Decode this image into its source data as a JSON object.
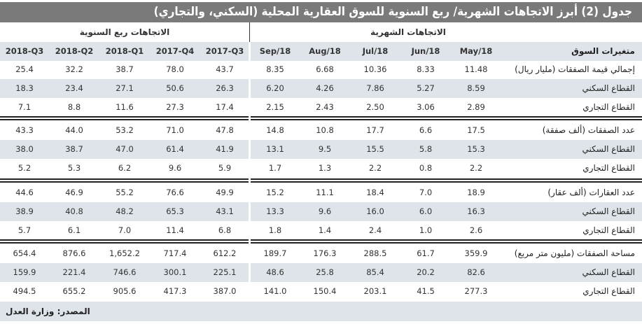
{
  "title": "جدول (2) أبرز الاتجاهات الشهرية/ ربع السنوية للسوق العقارية المحلية (السكني، والتجاري)",
  "groups": {
    "monthly": "الاتجاهات الشهرية",
    "quarterly": "الاتجاهات ربع السنوية"
  },
  "columns": {
    "label_header": "متغيرات السوق",
    "monthly": [
      "May/18",
      "Jun/18",
      "Jul/18",
      "Aug/18",
      "Sep/18"
    ],
    "quarterly": [
      "2017-Q3",
      "2017-Q4",
      "2018-Q1",
      "2018-Q2",
      "2018-Q3"
    ]
  },
  "rows": [
    {
      "label": "إجمالي قيمة الصفقات (مليار ريال)",
      "monthly": [
        "11.48",
        "8.33",
        "10.36",
        "6.68",
        "8.35"
      ],
      "quarterly": [
        "43.7",
        "78.0",
        "38.7",
        "32.2",
        "25.4"
      ]
    },
    {
      "label": "القطاع السكني",
      "monthly": [
        "8.59",
        "5.27",
        "7.86",
        "4.26",
        "6.20"
      ],
      "quarterly": [
        "26.3",
        "50.6",
        "27.1",
        "23.4",
        "18.3"
      ]
    },
    {
      "label": "القطاع التجاري",
      "monthly": [
        "2.89",
        "3.06",
        "2.50",
        "2.43",
        "2.15"
      ],
      "quarterly": [
        "17.4",
        "27.3",
        "11.6",
        "8.8",
        "7.1"
      ]
    },
    {
      "label": "عدد الصفقات (ألف صفقة)",
      "monthly": [
        "17.5",
        "6.6",
        "17.7",
        "10.8",
        "14.8"
      ],
      "quarterly": [
        "47.8",
        "71.0",
        "53.2",
        "44.0",
        "43.3"
      ]
    },
    {
      "label": "القطاع السكني",
      "monthly": [
        "15.3",
        "5.8",
        "15.5",
        "9.5",
        "13.1"
      ],
      "quarterly": [
        "41.9",
        "61.4",
        "47.0",
        "38.7",
        "38.0"
      ]
    },
    {
      "label": "القطاع التجاري",
      "monthly": [
        "2.2",
        "0.8",
        "2.2",
        "1.3",
        "1.7"
      ],
      "quarterly": [
        "5.9",
        "9.6",
        "6.2",
        "5.3",
        "5.2"
      ]
    },
    {
      "label": "عدد العقارات (ألف عقار)",
      "monthly": [
        "18.9",
        "7.0",
        "18.4",
        "11.1",
        "15.2"
      ],
      "quarterly": [
        "49.9",
        "76.6",
        "55.2",
        "46.9",
        "44.6"
      ]
    },
    {
      "label": "القطاع السكني",
      "monthly": [
        "16.3",
        "6.0",
        "16.0",
        "9.6",
        "13.3"
      ],
      "quarterly": [
        "43.1",
        "65.3",
        "48.2",
        "40.8",
        "38.9"
      ]
    },
    {
      "label": "القطاع التجاري",
      "monthly": [
        "2.6",
        "1.0",
        "2.4",
        "1.4",
        "1.8"
      ],
      "quarterly": [
        "6.8",
        "11.4",
        "7.0",
        "6.1",
        "5.7"
      ]
    },
    {
      "label": "مساحة الصفقات (مليون متر مربع)",
      "monthly": [
        "359.9",
        "61.7",
        "288.5",
        "176.3",
        "189.7"
      ],
      "quarterly": [
        "612.2",
        "717.4",
        "1,652.2",
        "876.6",
        "654.4"
      ]
    },
    {
      "label": "القطاع السكني",
      "monthly": [
        "82.6",
        "20.2",
        "85.4",
        "25.8",
        "48.6"
      ],
      "quarterly": [
        "225.1",
        "300.1",
        "746.6",
        "221.4",
        "159.9"
      ]
    },
    {
      "label": "القطاع التجاري",
      "monthly": [
        "277.3",
        "41.5",
        "203.1",
        "150.4",
        "141.0"
      ],
      "quarterly": [
        "387.0",
        "417.3",
        "905.6",
        "655.2",
        "494.5"
      ]
    }
  ],
  "source": "المصدر: وزارة العدل",
  "colors": {
    "title_bar": "#7a7a7a",
    "shaded_row": "#dfe4ea",
    "text": "#222222"
  }
}
